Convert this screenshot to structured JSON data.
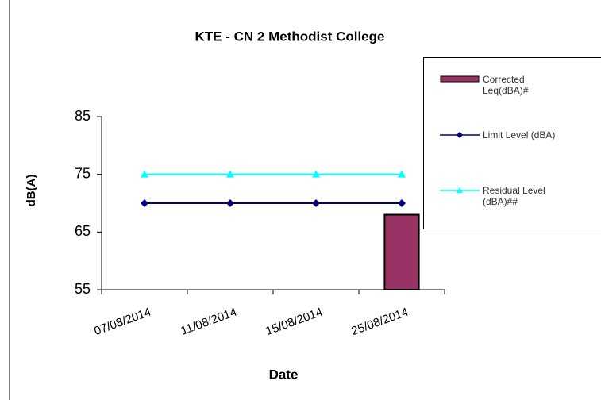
{
  "chart_data": {
    "type": "combo",
    "title": "KTE - CN 2 Methodist College",
    "x_label": "Date",
    "y_label": "dB(A)",
    "categories": [
      "07/08/2014",
      "11/08/2014",
      "15/08/2014",
      "25/08/2014"
    ],
    "series": [
      {
        "name": "Corrected Leq(dBA)#",
        "type": "bar",
        "color": "#993366",
        "values": [
          null,
          null,
          null,
          68
        ]
      },
      {
        "name": "Limit Level (dBA)",
        "type": "line",
        "marker": "diamond",
        "color": "#000080",
        "values": [
          70,
          70,
          70,
          70
        ]
      },
      {
        "name": "Residual Level (dBA)##",
        "type": "line",
        "marker": "triangle",
        "color": "#00FFFF",
        "values": [
          75,
          75,
          75,
          75
        ]
      }
    ],
    "ylim": [
      55,
      85
    ],
    "yticks": [
      55,
      65,
      75,
      85
    ],
    "grid": false,
    "legend": "right"
  }
}
